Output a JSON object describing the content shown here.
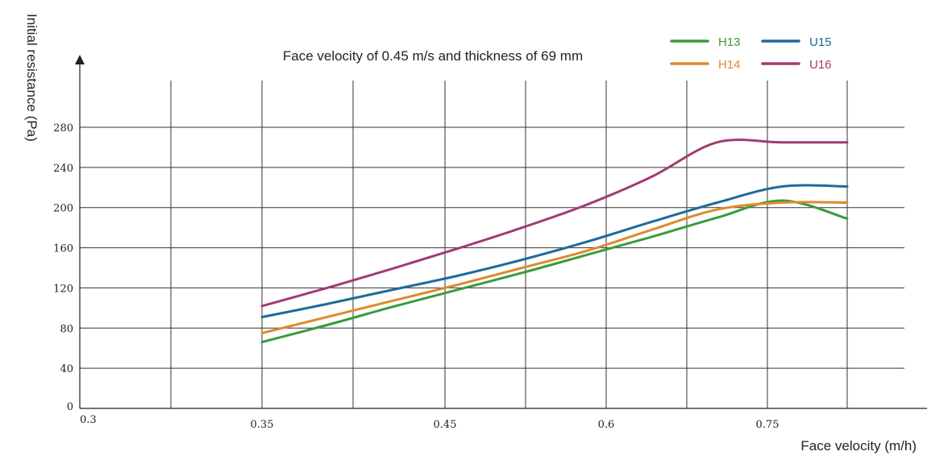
{
  "chart_data": {
    "type": "line",
    "title": "Face velocity of 0.45 m/s and thickness of 69 mm",
    "xlabel": "Face velocity (m/h)",
    "ylabel": "Initial resistance (Pa)",
    "ylim": [
      0,
      280
    ],
    "yticks": [
      "0",
      "40",
      "80",
      "120",
      "160",
      "200",
      "240",
      "280"
    ],
    "xtick_labels": [
      "0.3",
      "0.35",
      "0.45",
      "0.6",
      "0.75"
    ],
    "grid": true,
    "legend_position": "top-right",
    "x_data": [
      0.35,
      0.4,
      0.45,
      0.5,
      0.55,
      0.6,
      0.65,
      0.7,
      0.75,
      0.8
    ],
    "series": [
      {
        "name": "H13",
        "color": "#3a9a3e",
        "values": [
          66,
          83,
          101,
          118,
          135,
          153,
          171,
          190,
          207,
          189
        ]
      },
      {
        "name": "H14",
        "color": "#dd8a2c",
        "values": [
          75,
          91,
          107,
          123,
          140,
          157,
          178,
          198,
          205,
          205
        ]
      },
      {
        "name": "U15",
        "color": "#1f6a9c",
        "values": [
          91,
          104,
          118,
          132,
          148,
          166,
          186,
          205,
          221,
          221
        ]
      },
      {
        "name": "U16",
        "color": "#a03c73",
        "values": [
          102,
          120,
          139,
          159,
          180,
          203,
          231,
          265,
          265,
          265
        ]
      }
    ]
  }
}
